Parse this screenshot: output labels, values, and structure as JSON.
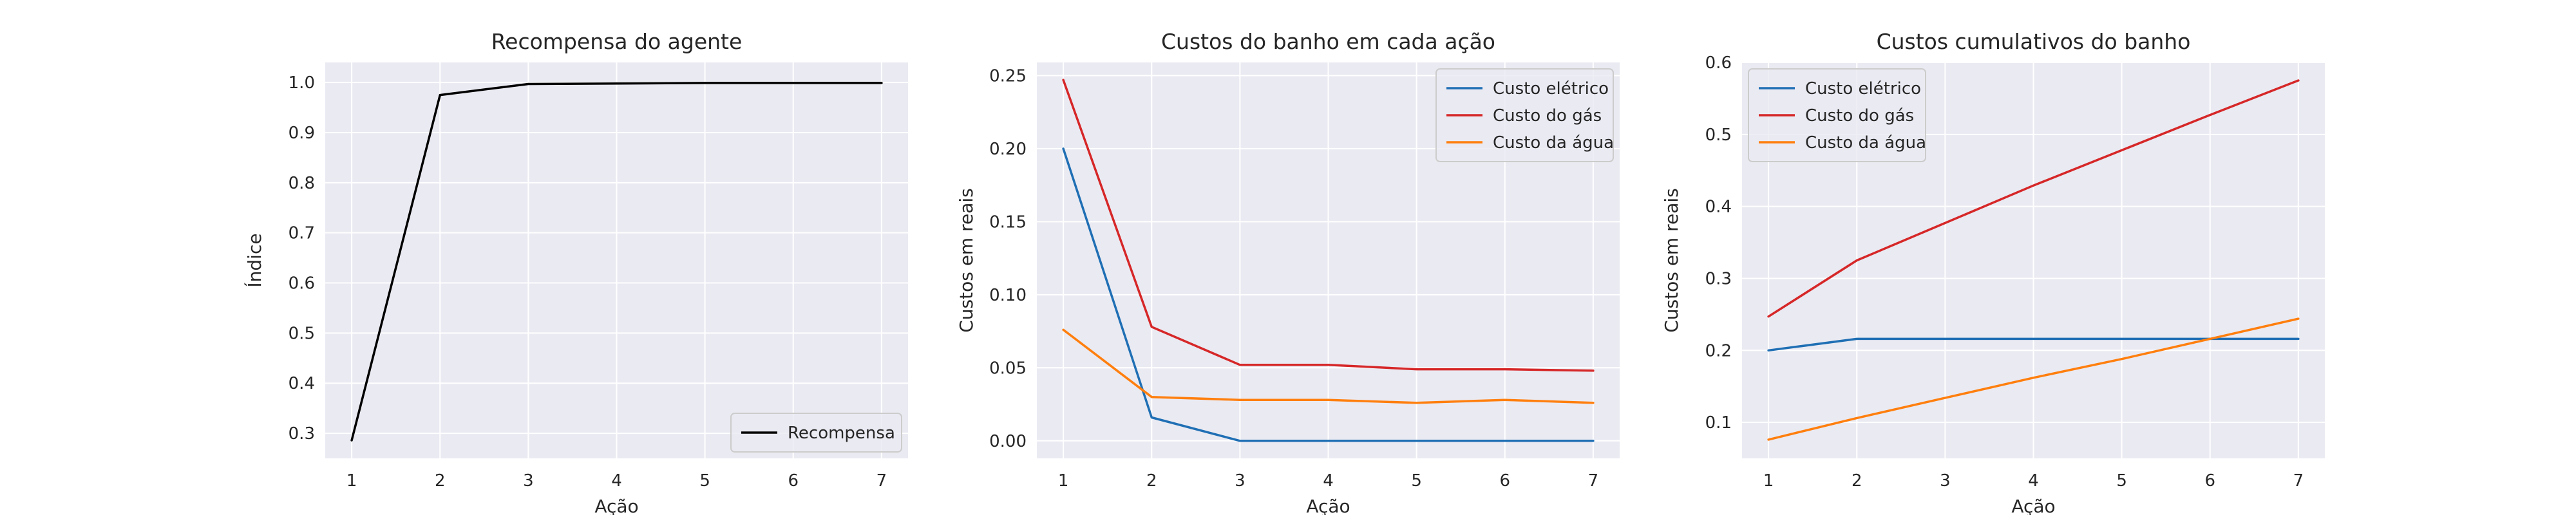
{
  "colors": {
    "background": "#eaeaf2",
    "grid": "#ffffff",
    "reward": "#000000",
    "electric": "#1f6fb4",
    "gas": "#d62728",
    "water": "#ff7f0e"
  },
  "chart_data": [
    {
      "type": "line",
      "title": "Recompensa do agente",
      "xlabel": "Ação",
      "ylabel": "Índice",
      "x": [
        1,
        2,
        3,
        4,
        5,
        6,
        7
      ],
      "xlim": [
        0.7,
        7.3
      ],
      "ylim": [
        0.25,
        1.04
      ],
      "xticks": [
        "1",
        "2",
        "3",
        "4",
        "5",
        "6",
        "7"
      ],
      "yticks": [
        "0.3",
        "0.4",
        "0.5",
        "0.6",
        "0.7",
        "0.8",
        "0.9",
        "1.0"
      ],
      "grid": true,
      "legend": "bottom-right",
      "series": [
        {
          "name": "Recompensa",
          "color": "#000000",
          "values": [
            0.286,
            0.975,
            0.997,
            0.998,
            0.999,
            0.999,
            0.999
          ]
        }
      ]
    },
    {
      "type": "line",
      "title": "Custos do banho em cada ação",
      "xlabel": "Ação",
      "ylabel": "Custos em reais",
      "x": [
        1,
        2,
        3,
        4,
        5,
        6,
        7
      ],
      "xlim": [
        0.7,
        7.3
      ],
      "ylim": [
        -0.012,
        0.259
      ],
      "xticks": [
        "1",
        "2",
        "3",
        "4",
        "5",
        "6",
        "7"
      ],
      "yticks": [
        "0.00",
        "0.05",
        "0.10",
        "0.15",
        "0.20",
        "0.25"
      ],
      "grid": true,
      "legend": "top-right",
      "series": [
        {
          "name": "Custo elétrico",
          "color": "#1f6fb4",
          "values": [
            0.2,
            0.016,
            0.0,
            0.0,
            0.0,
            0.0,
            0.0
          ]
        },
        {
          "name": "Custo do gás",
          "color": "#d62728",
          "values": [
            0.247,
            0.078,
            0.052,
            0.052,
            0.049,
            0.049,
            0.048
          ]
        },
        {
          "name": "Custo da água",
          "color": "#ff7f0e",
          "values": [
            0.076,
            0.03,
            0.028,
            0.028,
            0.026,
            0.028,
            0.026
          ]
        }
      ]
    },
    {
      "type": "line",
      "title": "Custos cumulativos do banho",
      "xlabel": "Ação",
      "ylabel": "Custos em reais",
      "x": [
        1,
        2,
        3,
        4,
        5,
        6,
        7
      ],
      "xlim": [
        0.7,
        7.3
      ],
      "ylim": [
        0.05,
        0.6
      ],
      "xticks": [
        "1",
        "2",
        "3",
        "4",
        "5",
        "6",
        "7"
      ],
      "yticks": [
        "0.1",
        "0.2",
        "0.3",
        "0.4",
        "0.5",
        "0.6"
      ],
      "grid": true,
      "legend": "top-left",
      "series": [
        {
          "name": "Custo elétrico",
          "color": "#1f6fb4",
          "values": [
            0.2,
            0.216,
            0.216,
            0.216,
            0.216,
            0.216,
            0.216
          ]
        },
        {
          "name": "Custo do gás",
          "color": "#d62728",
          "values": [
            0.247,
            0.325,
            0.377,
            0.429,
            0.478,
            0.527,
            0.575
          ]
        },
        {
          "name": "Custo da água",
          "color": "#ff7f0e",
          "values": [
            0.076,
            0.106,
            0.134,
            0.162,
            0.188,
            0.216,
            0.244
          ]
        }
      ]
    }
  ]
}
